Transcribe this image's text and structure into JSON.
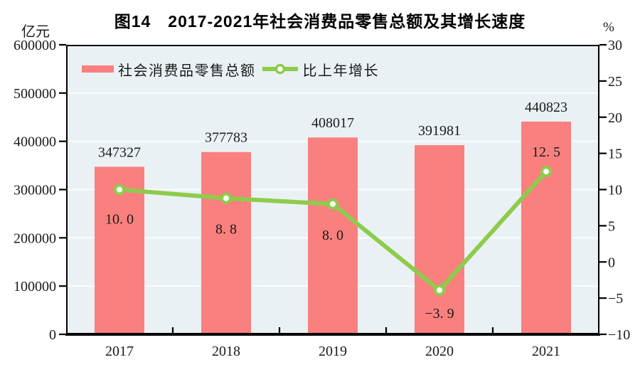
{
  "figure": {
    "title": "图14　2017-2021年社会消费品零售总额及其增长速度"
  },
  "left_axis_unit": "亿元",
  "right_axis_unit": "%",
  "legend": {
    "items": [
      {
        "label": "社会消费品零售总额",
        "swatch": "bar"
      },
      {
        "label": "比上年增长",
        "swatch": "line-with-circle-marker"
      }
    ]
  },
  "colors": {
    "bar": "#F9807E",
    "line": "#8DCC4B",
    "marker_fill": "#FFFFFF",
    "plot_bg": "#EAF1F5",
    "grid": "#FAFCFD",
    "axis": "#000000",
    "text": "#1A1A1A",
    "page_bg": "#FFFFFF"
  },
  "chart_data": {
    "type": "bar+line-combo",
    "title": "图14　2017-2021年社会消费品零售总额及其增长速度",
    "categories": [
      "2017",
      "2018",
      "2019",
      "2020",
      "2021"
    ],
    "series": [
      {
        "name": "社会消费品零售总额",
        "type": "bar",
        "axis": "left",
        "unit": "亿元",
        "values": [
          347327,
          377783,
          408017,
          391981,
          440823
        ],
        "value_labels": [
          "347327",
          "377783",
          "408017",
          "391981",
          "440823"
        ],
        "color": "#F9807E"
      },
      {
        "name": "比上年增长",
        "type": "line",
        "axis": "right",
        "unit": "%",
        "values": [
          10.0,
          8.8,
          8.0,
          -3.9,
          12.5
        ],
        "value_labels": [
          "10. 0",
          "8. 8",
          "8. 0",
          "−3. 9",
          "12. 5"
        ],
        "label_side": [
          "below",
          "below",
          "below",
          "below",
          "above"
        ],
        "label_dy": [
          48,
          50,
          50,
          39,
          -21
        ],
        "color": "#8DCC4B",
        "marker": "circle-white-fill-green-ring"
      }
    ],
    "left_axis": {
      "unit": "亿元",
      "min": 0,
      "max": 600000,
      "tick_values": [
        600000,
        500000,
        400000,
        300000,
        200000,
        100000,
        0
      ],
      "tick_labels": [
        "600000",
        "500000",
        "400000",
        "300000",
        "200000",
        "100000",
        "0"
      ]
    },
    "right_axis": {
      "unit": "%",
      "min": -10,
      "max": 30,
      "tick_values": [
        30,
        25,
        20,
        15,
        10,
        5,
        0,
        -5,
        -10
      ],
      "tick_labels": [
        "30",
        "25",
        "20",
        "15",
        "10",
        "5",
        "0",
        "−5",
        "−10"
      ]
    },
    "grid": "horizontal-white-lines-at-left-axis-ticks",
    "legend_position": "top-left-inside-plot",
    "plot_frame": "black-border-all-sides"
  }
}
